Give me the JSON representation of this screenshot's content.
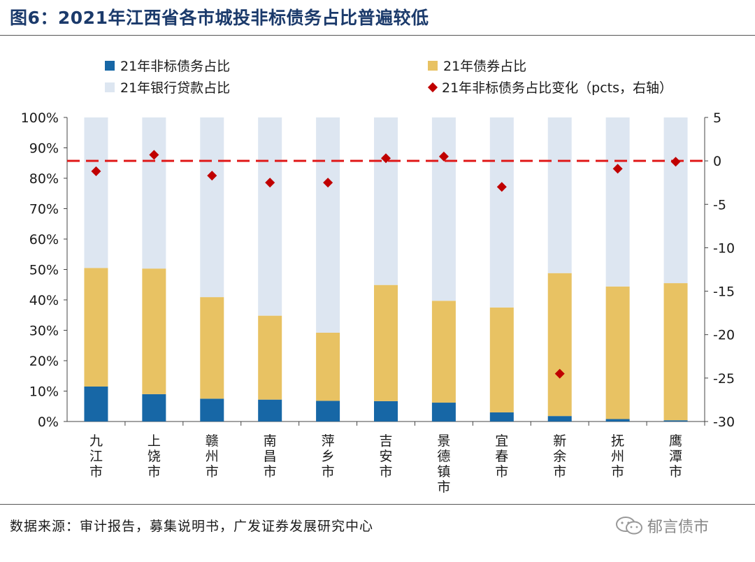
{
  "header": {
    "title": "图6：2021年江西省各市城投非标债务占比普遍较低"
  },
  "legend": {
    "nonstd": "21年非标债务占比",
    "bond": "21年债券占比",
    "bank": "21年银行贷款占比",
    "change": "21年非标债务占比变化（pcts，右轴）"
  },
  "colors": {
    "nonstd": "#1767a6",
    "bond": "#e8c263",
    "bank": "#dde6f1",
    "change": "#c00000",
    "refline": "#e01b1b"
  },
  "chart_data": {
    "type": "bar",
    "stacked": true,
    "categories": [
      "九江市",
      "上饶市",
      "赣州市",
      "南昌市",
      "萍乡市",
      "吉安市",
      "景德镇市",
      "宜春市",
      "新余市",
      "抚州市",
      "鹰潭市"
    ],
    "series": [
      {
        "name": "21年非标债务占比",
        "axis": "left",
        "values": [
          11.5,
          9.0,
          7.5,
          7.2,
          6.8,
          6.7,
          6.2,
          3.0,
          1.8,
          0.8,
          0.4
        ]
      },
      {
        "name": "21年债券占比",
        "axis": "left",
        "values": [
          39.0,
          41.3,
          33.4,
          27.6,
          22.4,
          38.2,
          33.5,
          34.5,
          47.0,
          43.6,
          45.1
        ]
      },
      {
        "name": "21年银行贷款占比",
        "axis": "left",
        "values": [
          49.5,
          49.7,
          59.1,
          65.2,
          70.8,
          55.1,
          60.3,
          62.5,
          51.2,
          55.6,
          54.5
        ]
      },
      {
        "name": "21年非标债务占比变化（pcts，右轴）",
        "type": "scatter",
        "axis": "right",
        "values": [
          -1.2,
          0.7,
          -1.7,
          -2.5,
          -2.5,
          0.3,
          0.5,
          -3.0,
          -24.5,
          -0.9,
          -0.1
        ]
      }
    ],
    "ylim_left": [
      0,
      100
    ],
    "yticks_left": [
      "0%",
      "10%",
      "20%",
      "30%",
      "40%",
      "50%",
      "60%",
      "70%",
      "80%",
      "90%",
      "100%"
    ],
    "ylim_right": [
      -30,
      5
    ],
    "yticks_right": [
      "5",
      "0",
      "-5",
      "-10",
      "-15",
      "-20",
      "-25",
      "-30"
    ],
    "reference_line": {
      "axis": "right",
      "value": 0,
      "style": "dashed"
    }
  },
  "footer": {
    "source": "数据来源：审计报告，募集说明书，广发证券发展研究中心",
    "watermark": "郁言债市"
  }
}
